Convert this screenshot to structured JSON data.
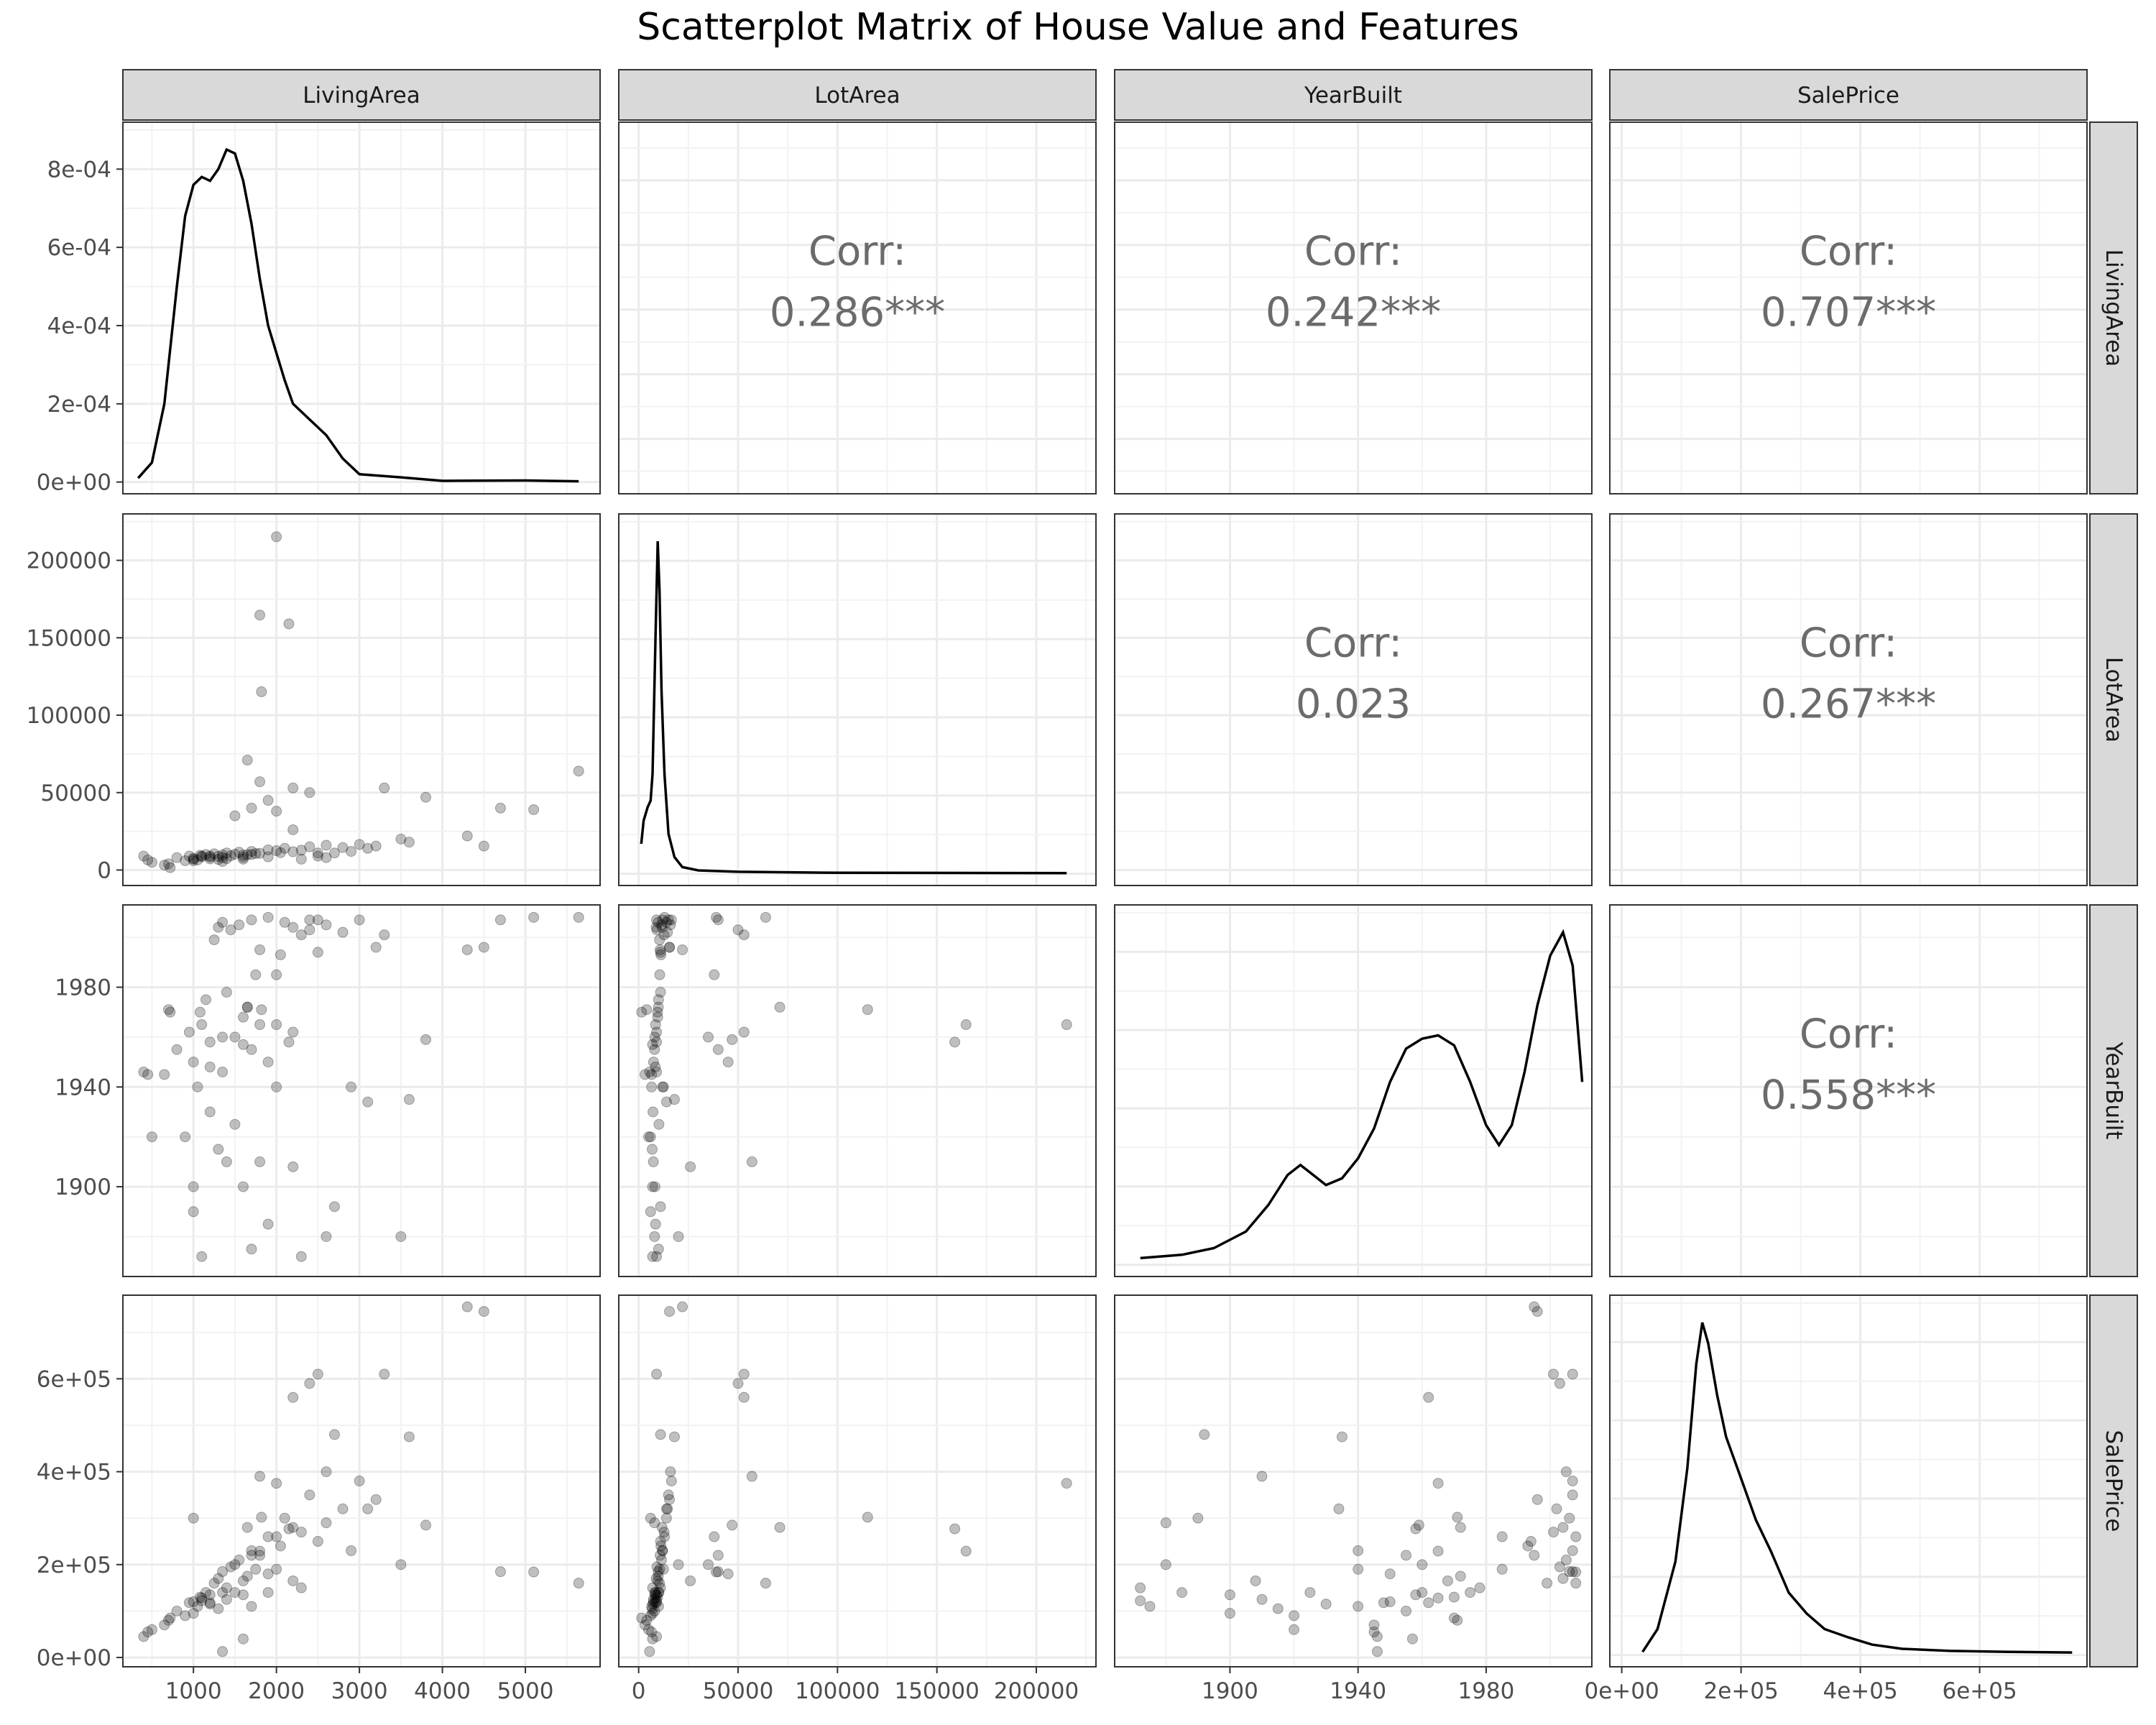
{
  "chart_data": {
    "type": "scatter",
    "title": "Scatterplot Matrix of House Value and Features",
    "variables": [
      "LivingArea",
      "LotArea",
      "YearBuilt",
      "SalePrice"
    ],
    "axis_ranges": {
      "LivingArea": [
        150,
        5900
      ],
      "LotArea": [
        -10000,
        230000
      ],
      "YearBuilt": [
        1864,
        2013
      ],
      "SalePrice": [
        -20000,
        780000
      ]
    },
    "ticks": {
      "LivingArea": [
        {
          "value": 1000,
          "label": "1000"
        },
        {
          "value": 2000,
          "label": "2000"
        },
        {
          "value": 3000,
          "label": "3000"
        },
        {
          "value": 4000,
          "label": "4000"
        },
        {
          "value": 5000,
          "label": "5000"
        }
      ],
      "LotArea": [
        {
          "value": 0,
          "label": "0"
        },
        {
          "value": 50000,
          "label": "50000"
        },
        {
          "value": 100000,
          "label": "100000"
        },
        {
          "value": 150000,
          "label": "150000"
        },
        {
          "value": 200000,
          "label": "200000"
        }
      ],
      "YearBuilt": [
        {
          "value": 1900,
          "label": "1900"
        },
        {
          "value": 1940,
          "label": "1940"
        },
        {
          "value": 1980,
          "label": "1980"
        }
      ],
      "SalePrice": [
        {
          "value": 0,
          "label": "0e+00"
        },
        {
          "value": 200000,
          "label": "2e+05"
        },
        {
          "value": 400000,
          "label": "4e+05"
        },
        {
          "value": 600000,
          "label": "6e+05"
        }
      ]
    },
    "density_axis": {
      "range": [
        -3e-05,
        0.00092
      ],
      "ticks": [
        {
          "value": 0,
          "label": "0e+00"
        },
        {
          "value": 0.0002,
          "label": "2e-04"
        },
        {
          "value": 0.0004,
          "label": "4e-04"
        },
        {
          "value": 0.0006,
          "label": "6e-04"
        },
        {
          "value": 0.0008,
          "label": "8e-04"
        }
      ]
    },
    "densities": {
      "LivingArea": [
        [
          334,
          1e-05
        ],
        [
          500,
          5e-05
        ],
        [
          650,
          0.0002
        ],
        [
          800,
          0.0005
        ],
        [
          900,
          0.00068
        ],
        [
          1000,
          0.00076
        ],
        [
          1100,
          0.00078
        ],
        [
          1200,
          0.00077
        ],
        [
          1300,
          0.0008
        ],
        [
          1400,
          0.00085
        ],
        [
          1500,
          0.00084
        ],
        [
          1600,
          0.00077
        ],
        [
          1700,
          0.00066
        ],
        [
          1800,
          0.00052
        ],
        [
          1900,
          0.0004
        ],
        [
          2000,
          0.00033
        ],
        [
          2100,
          0.00026
        ],
        [
          2200,
          0.0002
        ],
        [
          2400,
          0.00016
        ],
        [
          2600,
          0.00012
        ],
        [
          2800,
          6e-05
        ],
        [
          3000,
          2e-05
        ],
        [
          3500,
          1.2e-05
        ],
        [
          4000,
          3e-06
        ],
        [
          5000,
          4e-06
        ],
        [
          5642,
          2e-06
        ]
      ],
      "LotArea": [
        [
          1300,
          0.09
        ],
        [
          2500,
          0.16
        ],
        [
          4500,
          0.2
        ],
        [
          6000,
          0.22
        ],
        [
          7000,
          0.3
        ],
        [
          8500,
          0.72
        ],
        [
          9600,
          1.0
        ],
        [
          10500,
          0.85
        ],
        [
          11500,
          0.55
        ],
        [
          13000,
          0.3
        ],
        [
          15000,
          0.12
        ],
        [
          18000,
          0.05
        ],
        [
          22000,
          0.02
        ],
        [
          30000,
          0.01
        ],
        [
          50000,
          0.006
        ],
        [
          100000,
          0.003
        ],
        [
          215245,
          0.002
        ]
      ],
      "YearBuilt": [
        [
          1872,
          0.02
        ],
        [
          1885,
          0.03
        ],
        [
          1895,
          0.05
        ],
        [
          1905,
          0.1
        ],
        [
          1912,
          0.18
        ],
        [
          1918,
          0.27
        ],
        [
          1922,
          0.3
        ],
        [
          1926,
          0.27
        ],
        [
          1930,
          0.24
        ],
        [
          1935,
          0.26
        ],
        [
          1940,
          0.32
        ],
        [
          1945,
          0.41
        ],
        [
          1950,
          0.55
        ],
        [
          1955,
          0.65
        ],
        [
          1960,
          0.68
        ],
        [
          1965,
          0.69
        ],
        [
          1970,
          0.66
        ],
        [
          1975,
          0.55
        ],
        [
          1980,
          0.42
        ],
        [
          1984,
          0.36
        ],
        [
          1988,
          0.42
        ],
        [
          1992,
          0.58
        ],
        [
          1996,
          0.78
        ],
        [
          2000,
          0.93
        ],
        [
          2004,
          1.0
        ],
        [
          2007,
          0.9
        ],
        [
          2010,
          0.55
        ]
      ],
      "SalePrice": [
        [
          34900,
          3e-05
        ],
        [
          60000,
          0.00025
        ],
        [
          90000,
          0.0009
        ],
        [
          110000,
          0.0018
        ],
        [
          125000,
          0.0028
        ],
        [
          135000,
          0.0032
        ],
        [
          145000,
          0.003
        ],
        [
          160000,
          0.0025
        ],
        [
          175000,
          0.0021
        ],
        [
          200000,
          0.0017
        ],
        [
          225000,
          0.0013
        ],
        [
          250000,
          0.001
        ],
        [
          280000,
          0.0006
        ],
        [
          310000,
          0.0004
        ],
        [
          340000,
          0.00025
        ],
        [
          380000,
          0.00017
        ],
        [
          420000,
          0.0001
        ],
        [
          470000,
          6e-05
        ],
        [
          550000,
          4e-05
        ],
        [
          650000,
          3e-05
        ],
        [
          755000,
          2.5e-05
        ]
      ]
    },
    "correlations": [
      {
        "row": "LivingArea",
        "col": "LotArea",
        "label": "Corr:",
        "value": "0.286***"
      },
      {
        "row": "LivingArea",
        "col": "YearBuilt",
        "label": "Corr:",
        "value": "0.242***"
      },
      {
        "row": "LivingArea",
        "col": "SalePrice",
        "label": "Corr:",
        "value": "0.707***"
      },
      {
        "row": "LotArea",
        "col": "YearBuilt",
        "label": "Corr:",
        "value": "0.023"
      },
      {
        "row": "LotArea",
        "col": "SalePrice",
        "label": "Corr:",
        "value": "0.267***"
      },
      {
        "row": "YearBuilt",
        "col": "SalePrice",
        "label": "Corr:",
        "value": "0.558***"
      }
    ],
    "points": [
      {
        "living": 800,
        "lot": 8000,
        "year": 1955,
        "price": 100000
      },
      {
        "living": 950,
        "lot": 9000,
        "year": 1962,
        "price": 118000
      },
      {
        "living": 1000,
        "lot": 7500,
        "year": 1950,
        "price": 120000
      },
      {
        "living": 1080,
        "lot": 9500,
        "year": 1970,
        "price": 130000
      },
      {
        "living": 1100,
        "lot": 8500,
        "year": 1965,
        "price": 128000
      },
      {
        "living": 1150,
        "lot": 10000,
        "year": 1975,
        "price": 140000
      },
      {
        "living": 1200,
        "lot": 9000,
        "year": 1958,
        "price": 135000
      },
      {
        "living": 1250,
        "lot": 10500,
        "year": 1999,
        "price": 160000
      },
      {
        "living": 1300,
        "lot": 8800,
        "year": 2004,
        "price": 170000
      },
      {
        "living": 1350,
        "lot": 9800,
        "year": 2006,
        "price": 185000
      },
      {
        "living": 1400,
        "lot": 11000,
        "year": 1978,
        "price": 150000
      },
      {
        "living": 1450,
        "lot": 9200,
        "year": 2003,
        "price": 195000
      },
      {
        "living": 1500,
        "lot": 10200,
        "year": 1925,
        "price": 140000
      },
      {
        "living": 1550,
        "lot": 11500,
        "year": 2005,
        "price": 210000
      },
      {
        "living": 1600,
        "lot": 9600,
        "year": 1968,
        "price": 165000
      },
      {
        "living": 1700,
        "lot": 12000,
        "year": 2007,
        "price": 230000
      },
      {
        "living": 1800,
        "lot": 10800,
        "year": 1995,
        "price": 220000
      },
      {
        "living": 1900,
        "lot": 13000,
        "year": 2008,
        "price": 260000
      },
      {
        "living": 2000,
        "lot": 12500,
        "year": 1940,
        "price": 190000
      },
      {
        "living": 2100,
        "lot": 14000,
        "year": 2006,
        "price": 300000
      },
      {
        "living": 2200,
        "lot": 11800,
        "year": 2004,
        "price": 280000
      },
      {
        "living": 2400,
        "lot": 15000,
        "year": 2007,
        "price": 350000
      },
      {
        "living": 2600,
        "lot": 16000,
        "year": 2005,
        "price": 400000
      },
      {
        "living": 900,
        "lot": 6000,
        "year": 1920,
        "price": 90000
      },
      {
        "living": 1050,
        "lot": 6500,
        "year": 1940,
        "price": 110000
      },
      {
        "living": 1200,
        "lot": 7200,
        "year": 1930,
        "price": 115000
      },
      {
        "living": 1300,
        "lot": 6800,
        "year": 1915,
        "price": 105000
      },
      {
        "living": 1400,
        "lot": 7400,
        "year": 1910,
        "price": 125000
      },
      {
        "living": 1600,
        "lot": 8200,
        "year": 1900,
        "price": 135000
      },
      {
        "living": 1000,
        "lot": 7000,
        "year": 1900,
        "price": 95000
      },
      {
        "living": 1200,
        "lot": 8400,
        "year": 1948,
        "price": 118000
      },
      {
        "living": 1350,
        "lot": 8100,
        "year": 1960,
        "price": 140000
      },
      {
        "living": 1650,
        "lot": 9900,
        "year": 1972,
        "price": 175000
      },
      {
        "living": 1750,
        "lot": 10600,
        "year": 1985,
        "price": 190000
      },
      {
        "living": 2050,
        "lot": 11200,
        "year": 1993,
        "price": 240000
      },
      {
        "living": 2300,
        "lot": 12800,
        "year": 2001,
        "price": 270000
      },
      {
        "living": 2500,
        "lot": 11000,
        "year": 1994,
        "price": 250000
      },
      {
        "living": 2800,
        "lot": 14500,
        "year": 2002,
        "price": 320000
      },
      {
        "living": 3000,
        "lot": 16500,
        "year": 2007,
        "price": 380000
      },
      {
        "living": 3200,
        "lot": 15500,
        "year": 1996,
        "price": 340000
      },
      {
        "living": 700,
        "lot": 4000,
        "year": 1971,
        "price": 80000
      },
      {
        "living": 650,
        "lot": 3200,
        "year": 1945,
        "price": 70000
      },
      {
        "living": 500,
        "lot": 5000,
        "year": 1920,
        "price": 60000
      },
      {
        "living": 450,
        "lot": 6500,
        "year": 1945,
        "price": 55000
      },
      {
        "living": 400,
        "lot": 9000,
        "year": 1946,
        "price": 45000
      },
      {
        "living": 720,
        "lot": 1500,
        "year": 1970,
        "price": 85000
      },
      {
        "living": 1500,
        "lot": 35000,
        "year": 1960,
        "price": 200000
      },
      {
        "living": 1700,
        "lot": 40000,
        "year": 1955,
        "price": 220000
      },
      {
        "living": 1900,
        "lot": 45000,
        "year": 1950,
        "price": 180000
      },
      {
        "living": 2000,
        "lot": 38000,
        "year": 1985,
        "price": 260000
      },
      {
        "living": 1650,
        "lot": 71000,
        "year": 1972,
        "price": 280000
      },
      {
        "living": 1800,
        "lot": 57000,
        "year": 1910,
        "price": 390000
      },
      {
        "living": 2200,
        "lot": 53000,
        "year": 1962,
        "price": 560000
      },
      {
        "living": 2400,
        "lot": 50000,
        "year": 2003,
        "price": 590000
      },
      {
        "living": 2000,
        "lot": 215245,
        "year": 1965,
        "price": 375000
      },
      {
        "living": 2150,
        "lot": 159000,
        "year": 1958,
        "price": 277000
      },
      {
        "living": 1800,
        "lot": 164660,
        "year": 1965,
        "price": 228950
      },
      {
        "living": 1820,
        "lot": 115149,
        "year": 1971,
        "price": 302000
      },
      {
        "living": 3500,
        "lot": 20000,
        "year": 1880,
        "price": 200000
      },
      {
        "living": 3600,
        "lot": 18000,
        "year": 1935,
        "price": 475000
      },
      {
        "living": 3800,
        "lot": 47000,
        "year": 1959,
        "price": 285000
      },
      {
        "living": 4300,
        "lot": 22000,
        "year": 1995,
        "price": 755000
      },
      {
        "living": 4500,
        "lot": 15500,
        "year": 1996,
        "price": 745000
      },
      {
        "living": 4700,
        "lot": 40000,
        "year": 2007,
        "price": 184750
      },
      {
        "living": 5100,
        "lot": 39000,
        "year": 2008,
        "price": 184000
      },
      {
        "living": 5642,
        "lot": 63887,
        "year": 2008,
        "price": 160000
      },
      {
        "living": 3300,
        "lot": 53000,
        "year": 2001,
        "price": 610000
      },
      {
        "living": 3100,
        "lot": 14000,
        "year": 1934,
        "price": 320000
      },
      {
        "living": 2600,
        "lot": 8000,
        "year": 1880,
        "price": 290000
      },
      {
        "living": 1100,
        "lot": 9000,
        "year": 1872,
        "price": 122000
      },
      {
        "living": 1700,
        "lot": 10000,
        "year": 1875,
        "price": 110000
      },
      {
        "living": 2300,
        "lot": 7000,
        "year": 1872,
        "price": 150000
      },
      {
        "living": 1900,
        "lot": 8500,
        "year": 1885,
        "price": 140000
      },
      {
        "living": 2700,
        "lot": 11000,
        "year": 1892,
        "price": 480000
      },
      {
        "living": 1000,
        "lot": 6000,
        "year": 1890,
        "price": 300000
      },
      {
        "living": 2900,
        "lot": 12000,
        "year": 1940,
        "price": 230000
      },
      {
        "living": 2200,
        "lot": 26000,
        "year": 1908,
        "price": 165000
      },
      {
        "living": 2500,
        "lot": 9000,
        "year": 2007,
        "price": 610000
      },
      {
        "living": 1600,
        "lot": 7000,
        "year": 1957,
        "price": 40000
      },
      {
        "living": 1350,
        "lot": 5500,
        "year": 1946,
        "price": 12789
      }
    ]
  }
}
